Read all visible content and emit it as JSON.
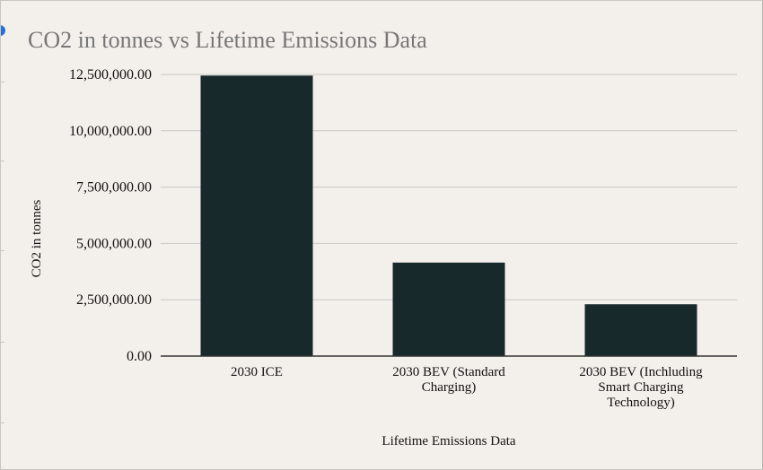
{
  "chart_data": {
    "type": "bar",
    "title": "CO2 in tonnes vs Lifetime Emissions Data",
    "xlabel": "Lifetime Emissions Data",
    "ylabel": "CO2 in tonnes",
    "categories": [
      [
        "2030 ICE"
      ],
      [
        "2030 BEV (Standard",
        "Charging)"
      ],
      [
        "2030 BEV (Inchluding",
        "Smart Charging",
        "Technology)"
      ]
    ],
    "values": [
      12450000,
      4150000,
      2300000
    ],
    "ylim": [
      0,
      12500000
    ],
    "yticks": [
      "0.00",
      "2,500,000.00",
      "5,000,000.00",
      "7,500,000.00",
      "10,000,000.00",
      "12,500,000.00"
    ],
    "ytick_values": [
      0,
      2500000,
      5000000,
      7500000,
      10000000,
      12500000
    ],
    "grid": true,
    "legend": "none",
    "colors": {
      "bar": "#18292c",
      "grid": "#c8c8c8",
      "axis": "#333333",
      "background": "#f3f0eb",
      "title": "#777777"
    }
  }
}
